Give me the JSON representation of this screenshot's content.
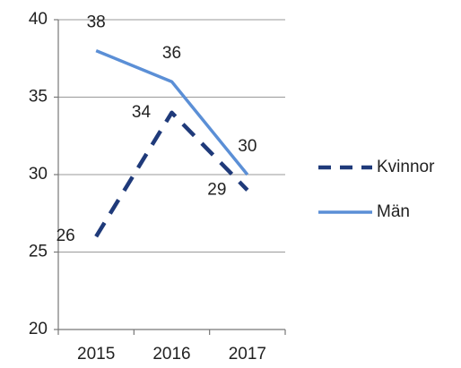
{
  "chart_data": {
    "type": "line",
    "categories": [
      "2015",
      "2016",
      "2017"
    ],
    "series": [
      {
        "name": "Kvinnor",
        "color": "#1f3a7a",
        "dashed": true,
        "values": [
          26,
          34,
          29
        ]
      },
      {
        "name": "Män",
        "color": "#5b8fd6",
        "dashed": false,
        "values": [
          38,
          36,
          30
        ]
      }
    ],
    "ylim": [
      20,
      40
    ],
    "yticks": [
      20,
      25,
      30,
      35,
      40
    ],
    "grid": true,
    "data_labels": true,
    "legend": "right"
  }
}
